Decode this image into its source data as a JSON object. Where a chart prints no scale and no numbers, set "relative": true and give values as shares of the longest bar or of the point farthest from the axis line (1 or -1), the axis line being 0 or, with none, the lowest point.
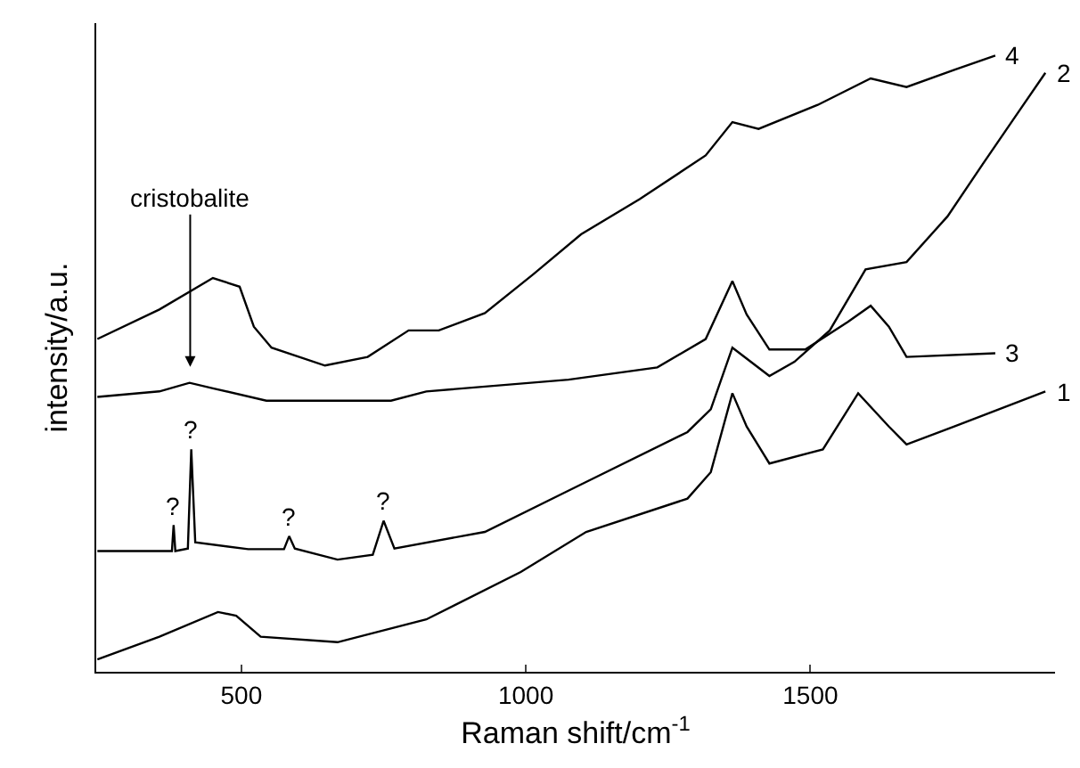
{
  "chart_data": {
    "type": "line",
    "relative": true,
    "xlabel": "Raman shift/cm$^{-1}$",
    "ylabel": "intensity/a.u.",
    "xlim": [
      245,
      1930
    ],
    "xticks": [
      500,
      1000,
      1500
    ],
    "legend": false,
    "marker": "none",
    "line_style": "solid",
    "series": [
      {
        "name": "4",
        "color": "#000000",
        "x": [
          247,
          356,
          450,
          497,
          522,
          553,
          647,
          722,
          794,
          847,
          928,
          1013,
          1097,
          1200,
          1316,
          1363,
          1409,
          1513,
          1606,
          1669,
          1753,
          1825
        ],
        "values": [
          0.54,
          0.588,
          0.639,
          0.625,
          0.56,
          0.526,
          0.497,
          0.511,
          0.554,
          0.554,
          0.582,
          0.645,
          0.71,
          0.767,
          0.838,
          0.892,
          0.881,
          0.92,
          0.963,
          0.949,
          0.977,
          1.0
        ]
      },
      {
        "name": "2",
        "color": "#000000",
        "x": [
          247,
          356,
          378,
          381,
          384,
          406,
          412,
          419,
          512,
          575,
          584,
          594,
          669,
          731,
          750,
          769,
          928,
          1097,
          1284,
          1325,
          1363,
          1428,
          1472,
          1534,
          1597,
          1669,
          1741,
          1803,
          1866,
          1913
        ],
        "values": [
          0.196,
          0.196,
          0.196,
          0.238,
          0.196,
          0.2,
          0.361,
          0.21,
          0.199,
          0.199,
          0.22,
          0.2,
          0.182,
          0.19,
          0.245,
          0.2,
          0.227,
          0.304,
          0.389,
          0.426,
          0.526,
          0.48,
          0.503,
          0.554,
          0.653,
          0.665,
          0.739,
          0.824,
          0.909,
          0.972
        ]
      },
      {
        "name": "3",
        "color": "#000000",
        "x": [
          247,
          356,
          409,
          450,
          544,
          763,
          825,
          1075,
          1231,
          1316,
          1363,
          1388,
          1428,
          1491,
          1566,
          1606,
          1638,
          1669,
          1825
        ],
        "values": [
          0.446,
          0.455,
          0.469,
          0.46,
          0.44,
          0.44,
          0.455,
          0.474,
          0.494,
          0.54,
          0.634,
          0.58,
          0.523,
          0.523,
          0.568,
          0.594,
          0.56,
          0.511,
          0.517
        ]
      },
      {
        "name": "1",
        "color": "#000000",
        "x": [
          247,
          356,
          459,
          491,
          534,
          669,
          825,
          991,
          1106,
          1284,
          1325,
          1363,
          1388,
          1428,
          1522,
          1584,
          1638,
          1669,
          1753,
          1913
        ],
        "values": [
          0.02,
          0.057,
          0.097,
          0.091,
          0.057,
          0.048,
          0.085,
          0.162,
          0.227,
          0.281,
          0.324,
          0.452,
          0.398,
          0.338,
          0.361,
          0.452,
          0.398,
          0.369,
          0.398,
          0.455
        ]
      }
    ],
    "annotations": [
      "cristobalite",
      {
        "text": "?",
        "x": 381,
        "y": 0.238
      },
      {
        "text": "?",
        "x": 412,
        "y": 0.361
      },
      {
        "text": "?",
        "x": 584,
        "y": 0.22
      },
      {
        "text": "?",
        "x": 750,
        "y": 0.245
      }
    ]
  }
}
